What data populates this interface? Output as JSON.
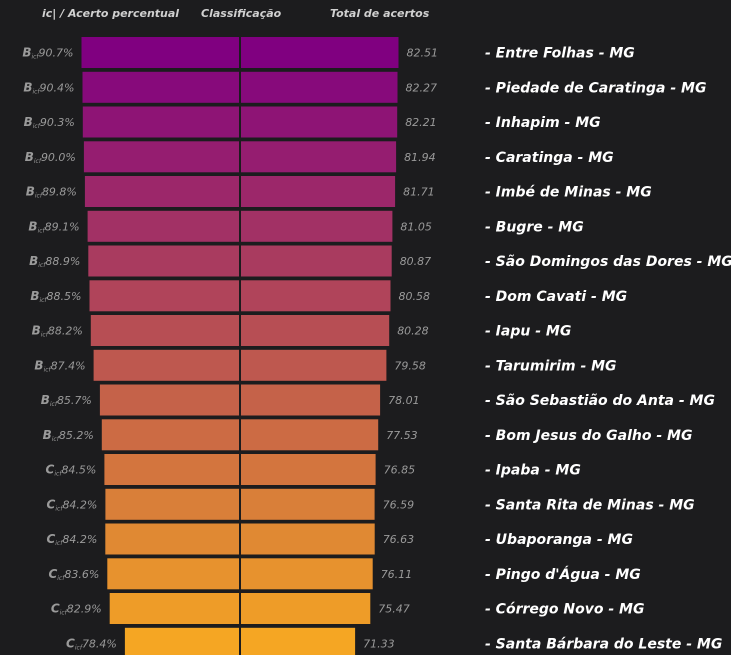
{
  "headers": {
    "left": "ic| / Acerto percentual",
    "middle": "Classificação",
    "right": "Total de acertos"
  },
  "colors": {
    "background": "#1c1c1e",
    "grade_text": "#9a9a9a",
    "value_text": "#9a9a9a",
    "label_text": "#ffffff",
    "gradient_top": "#800080",
    "gradient_bottom": "#f5a623"
  },
  "chart_data": {
    "type": "bar",
    "orientation": "horizontal-centered",
    "title": "",
    "xlabel": "",
    "ylabel": "",
    "categories": [
      "- Entre Folhas - MG",
      "- Piedade de Caratinga - MG",
      "- Inhapim - MG",
      "- Caratinga - MG",
      "- Imbé de Minas - MG",
      "- Bugre - MG",
      "- São Domingos das Dores - MG",
      "- Dom Cavati - MG",
      "- Iapu - MG",
      "- Tarumirim - MG",
      "- São Sebastião do Anta - MG",
      "- Bom Jesus do Galho - MG",
      "- Ipaba - MG",
      "- Santa Rita de Minas - MG",
      "- Ubaporanga - MG",
      "- Pingo d'Água - MG",
      "- Córrego Novo - MG",
      "- Santa Bárbara do Leste - MG"
    ],
    "grades": [
      "B",
      "B",
      "B",
      "B",
      "B",
      "B",
      "B",
      "B",
      "B",
      "B",
      "B",
      "B",
      "C",
      "C",
      "C",
      "C",
      "C",
      "C"
    ],
    "grade_subscript": "icf",
    "percentages": [
      "90.7%",
      "90.4%",
      "90.3%",
      "90.0%",
      "89.8%",
      "89.1%",
      "88.9%",
      "88.5%",
      "88.2%",
      "87.4%",
      "85.7%",
      "85.2%",
      "84.5%",
      "84.2%",
      "84.2%",
      "83.6%",
      "82.9%",
      "78.4%"
    ],
    "values": [
      82.51,
      82.27,
      82.21,
      81.94,
      81.71,
      81.05,
      80.87,
      80.58,
      80.28,
      79.58,
      78.01,
      77.53,
      76.85,
      76.59,
      76.63,
      76.11,
      75.47,
      71.33
    ],
    "value_labels": [
      "82.51",
      "82.27",
      "82.21",
      "81.94",
      "81.71",
      "81.05",
      "80.87",
      "80.58",
      "80.28",
      "79.58",
      "78.01",
      "77.53",
      "76.85",
      "76.59",
      "76.63",
      "76.11",
      "75.47",
      "71.33"
    ]
  }
}
